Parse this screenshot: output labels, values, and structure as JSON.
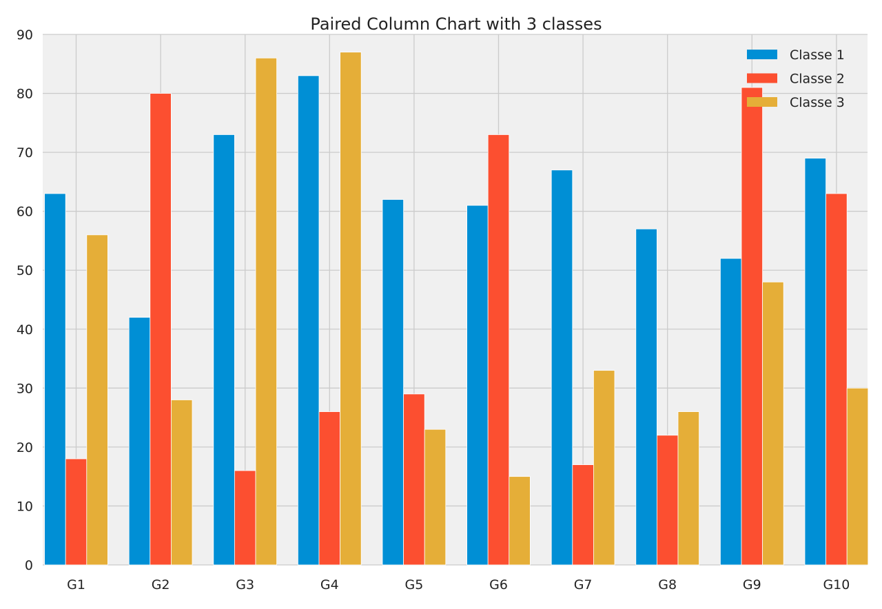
{
  "chart_data": {
    "type": "bar",
    "title": "Paired Column Chart with 3 classes",
    "xlabel": "",
    "ylabel": "",
    "categories": [
      "G1",
      "G2",
      "G3",
      "G4",
      "G5",
      "G6",
      "G7",
      "G8",
      "G9",
      "G10"
    ],
    "series": [
      {
        "name": "Classe 1",
        "color": "#008fd5",
        "values": [
          63,
          42,
          73,
          83,
          62,
          61,
          67,
          57,
          52,
          69
        ]
      },
      {
        "name": "Classe 2",
        "color": "#fc4f30",
        "values": [
          18,
          80,
          16,
          26,
          29,
          73,
          17,
          22,
          81,
          63
        ]
      },
      {
        "name": "Classe 3",
        "color": "#e5ae38",
        "values": [
          56,
          28,
          86,
          87,
          23,
          15,
          33,
          26,
          48,
          30
        ]
      }
    ],
    "ylim": [
      0,
      90
    ],
    "yticks": [
      "0",
      "10",
      "20",
      "30",
      "40",
      "50",
      "60",
      "70",
      "80",
      "90"
    ],
    "grid": true,
    "legend_position": "top-right",
    "background_color": "#f0f0f0",
    "grid_color": "#cbcbcb"
  }
}
